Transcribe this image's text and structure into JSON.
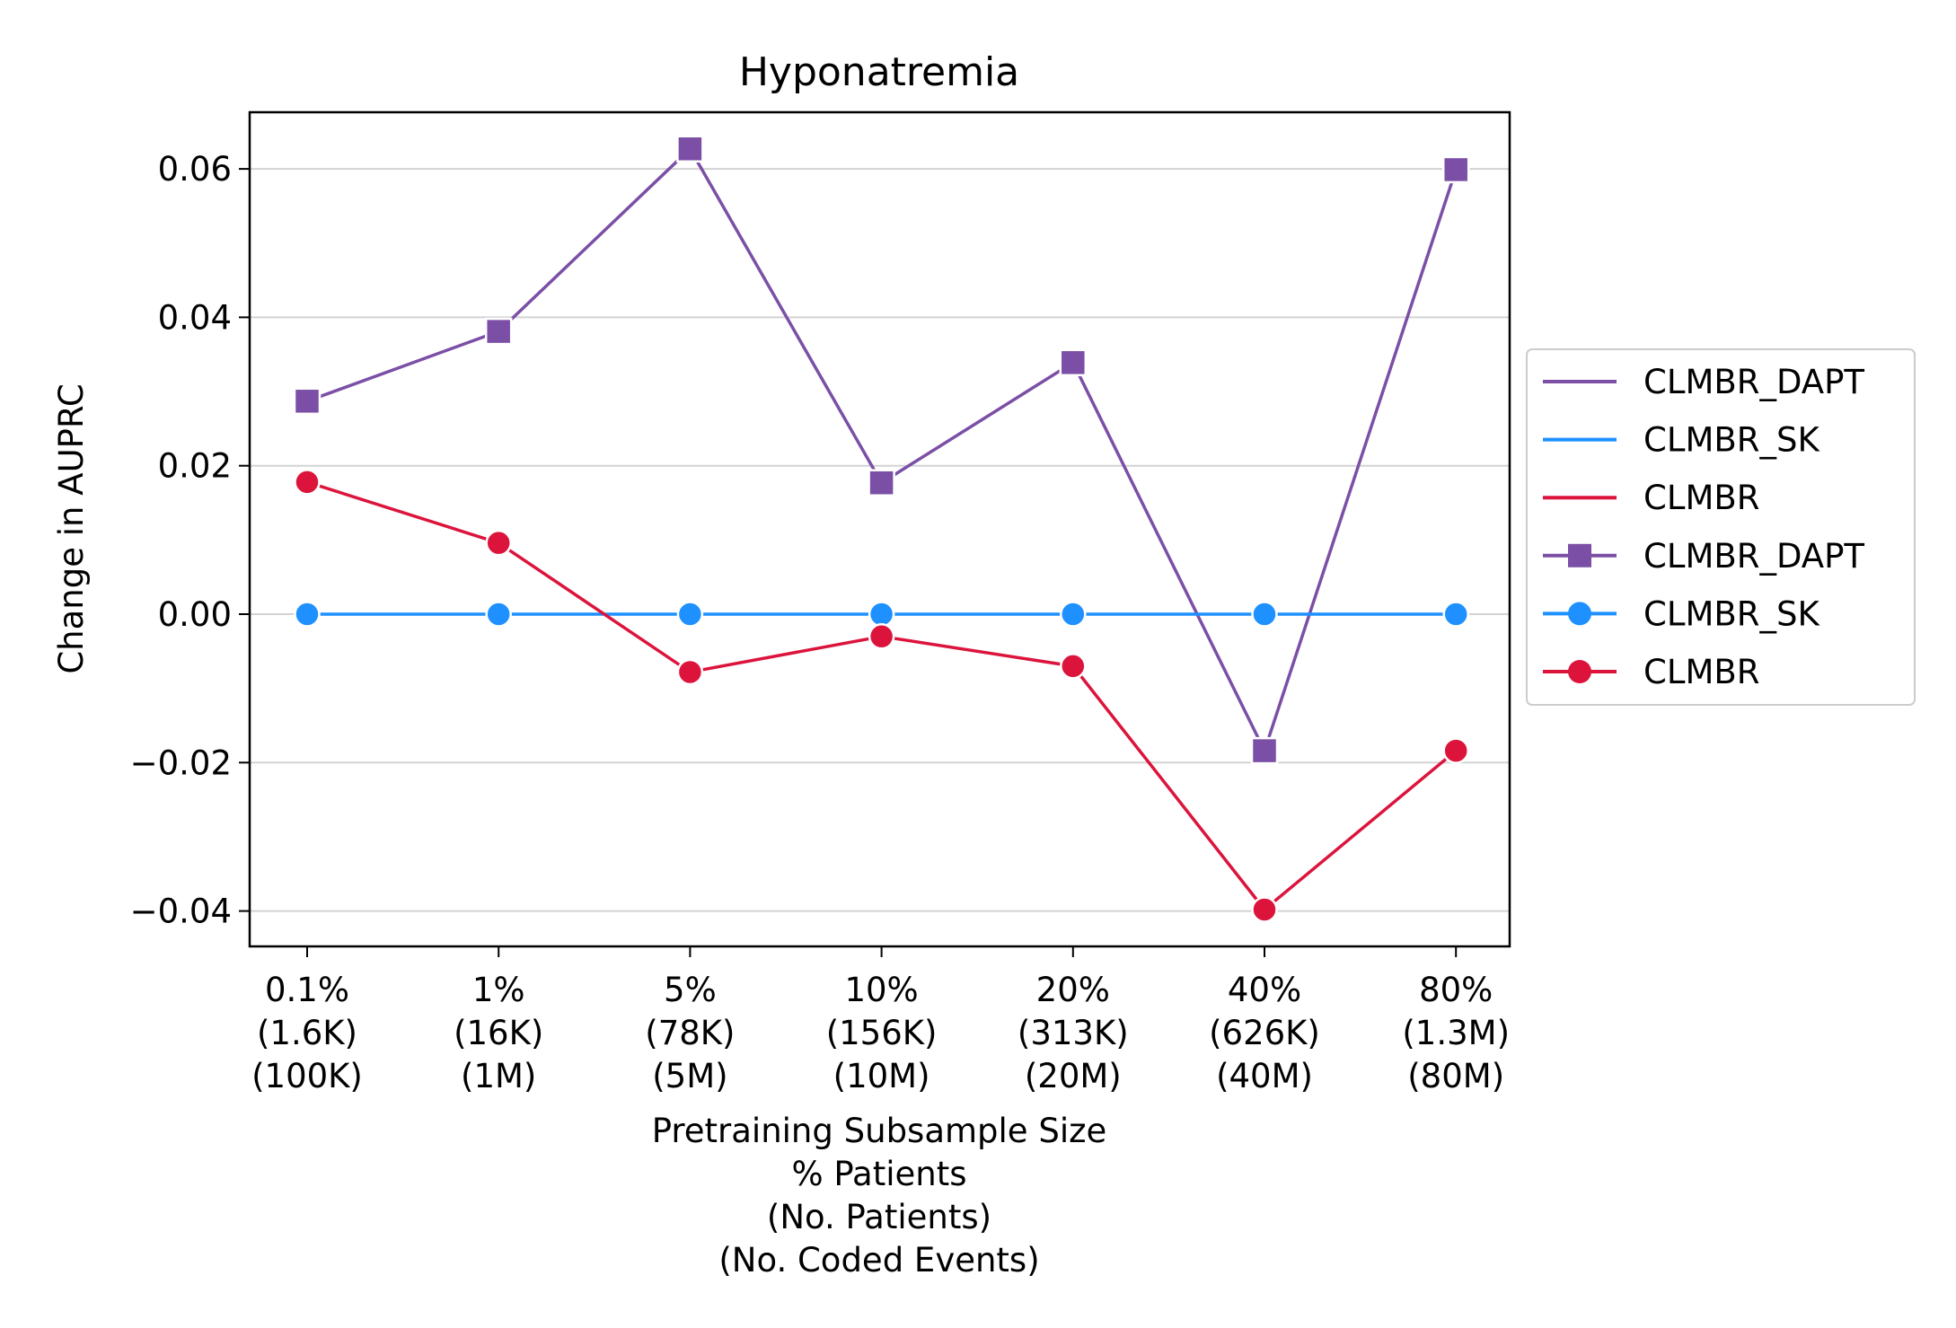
{
  "chart_data": {
    "type": "line",
    "title": "Hyponatremia",
    "ylabel": "Change in AUPRC",
    "xlabel_lines": [
      "Pretraining Subsample Size",
      "% Patients",
      "(No. Patients)",
      "(No. Coded Events)"
    ],
    "categories": [
      [
        "0.1%",
        "(1.6K)",
        "(100K)"
      ],
      [
        "1%",
        "(16K)",
        "(1M)"
      ],
      [
        "5%",
        "(78K)",
        "(5M)"
      ],
      [
        "10%",
        "(156K)",
        "(10M)"
      ],
      [
        "20%",
        "(313K)",
        "(20M)"
      ],
      [
        "40%",
        "(626K)",
        "(40M)"
      ],
      [
        "80%",
        "(1.3M)",
        "(80M)"
      ]
    ],
    "ylim": [
      -0.045,
      0.068
    ],
    "yticks": [
      -0.04,
      -0.02,
      0.0,
      0.02,
      0.04,
      0.06
    ],
    "ytick_labels": [
      "−0.04",
      "−0.02",
      "0.00",
      "0.02",
      "0.04",
      "0.06"
    ],
    "grid": "horizontal",
    "legend_position": "right, outside plot",
    "series": [
      {
        "name": "CLMBR_DAPT",
        "color": "#7b4fa6",
        "marker": "square",
        "values": [
          0.0287,
          0.0381,
          0.0627,
          0.0177,
          0.0339,
          -0.0184,
          0.0599
        ]
      },
      {
        "name": "CLMBR_SK",
        "color": "#1e90ff",
        "marker": "circle",
        "values": [
          0.0,
          0.0,
          0.0,
          0.0,
          0.0,
          0.0,
          0.0
        ]
      },
      {
        "name": "CLMBR",
        "color": "#dc143c",
        "marker": "circle",
        "values": [
          0.0178,
          0.0096,
          -0.0078,
          -0.003,
          -0.007,
          -0.0398,
          -0.0184
        ]
      }
    ],
    "legend_entries": [
      {
        "label": "CLMBR_DAPT",
        "series": 0,
        "marker": false
      },
      {
        "label": "CLMBR_SK",
        "series": 1,
        "marker": false
      },
      {
        "label": "CLMBR",
        "series": 2,
        "marker": false
      },
      {
        "label": "CLMBR_DAPT",
        "series": 0,
        "marker": true
      },
      {
        "label": "CLMBR_SK",
        "series": 1,
        "marker": true
      },
      {
        "label": "CLMBR",
        "series": 2,
        "marker": true
      }
    ]
  }
}
